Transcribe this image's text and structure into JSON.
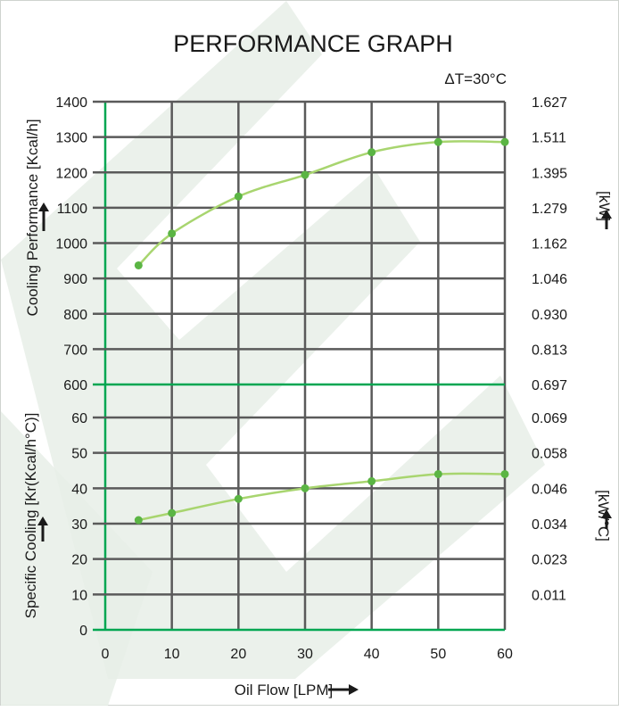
{
  "chart_data": [
    {
      "type": "line",
      "title": "PERFORMANCE GRAPH",
      "subtitle": "ΔT=30°C",
      "xlabel": "Oil Flow [LPM]",
      "ylabel": "Cooling Performance [Kcal/h]",
      "y2label": "[kW]",
      "x": [
        5,
        10,
        20,
        30,
        40,
        50,
        60
      ],
      "values": [
        937,
        1027,
        1132,
        1193,
        1257,
        1286,
        1286
      ],
      "xlim": [
        0,
        60
      ],
      "ylim": [
        600,
        1400
      ],
      "x_ticks": [
        "0",
        "10",
        "20",
        "30",
        "40",
        "50",
        "60"
      ],
      "y_ticks": [
        "1400",
        "1300",
        "1200",
        "1100",
        "1000",
        "900",
        "800",
        "700",
        "600"
      ],
      "y2_ticks": [
        "1.627",
        "1.511",
        "1.395",
        "1.279",
        "1.162",
        "1.046",
        "0.930",
        "0.813",
        "0.697"
      ],
      "grid": true,
      "line_color": "#a8d56f",
      "marker_color": "#5bb544"
    },
    {
      "type": "line",
      "xlabel": "Oil Flow [LPM]",
      "ylabel": "Specific Cooling [Kr(Kcal/h°C)]",
      "y2label": "[kW/°C]",
      "x": [
        5,
        10,
        20,
        30,
        40,
        50,
        60
      ],
      "values": [
        31,
        33,
        37,
        40,
        42,
        44,
        44
      ],
      "xlim": [
        0,
        60
      ],
      "ylim": [
        0,
        60
      ],
      "x_ticks": [
        "0",
        "10",
        "20",
        "30",
        "40",
        "50",
        "60"
      ],
      "y_ticks": [
        "60",
        "50",
        "40",
        "30",
        "20",
        "10",
        "0"
      ],
      "y2_ticks": [
        "0.069",
        "0.058",
        "0.046",
        "0.034",
        "0.023",
        "0.011"
      ],
      "grid": true,
      "line_color": "#a8d56f",
      "marker_color": "#5bb544"
    }
  ],
  "colors": {
    "grid": "#5a5a5a",
    "axis_accent": "#00a651",
    "watermark": "#e6ece6"
  }
}
